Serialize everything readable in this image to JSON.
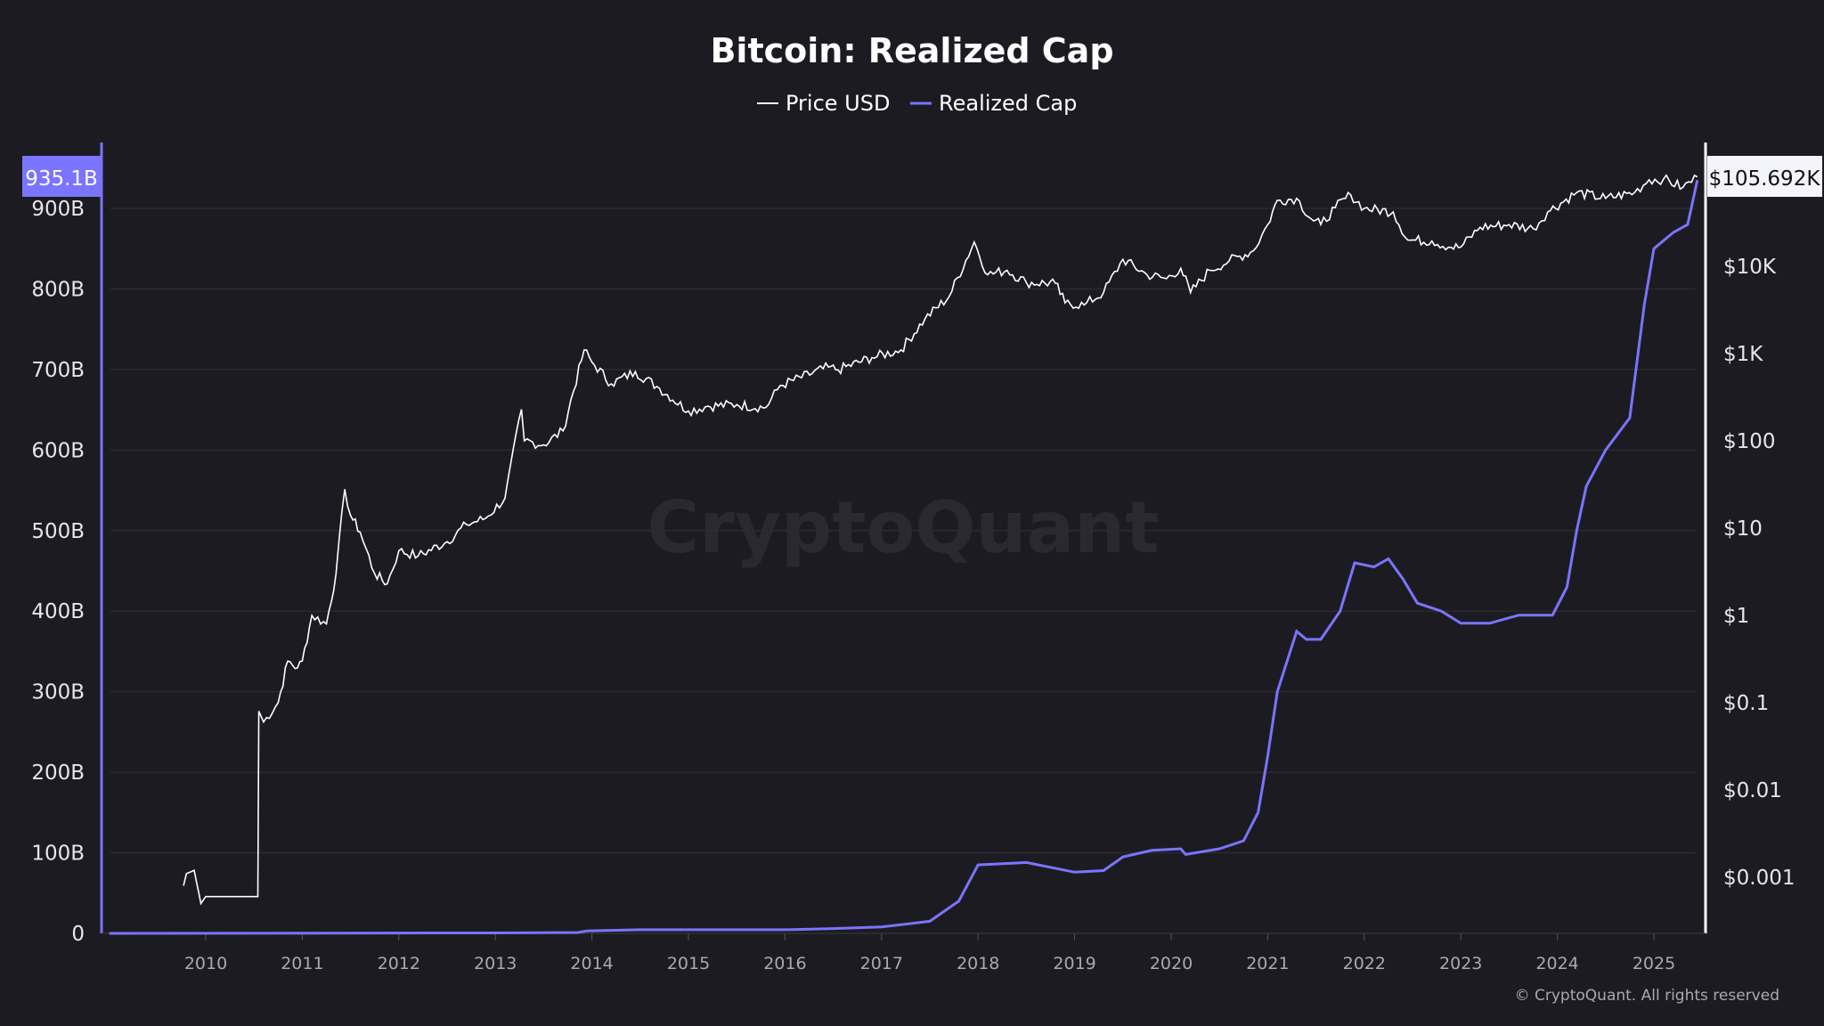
{
  "chart_data": {
    "type": "line",
    "title": "Bitcoin: Realized Cap",
    "legend": {
      "placement": "top-center"
    },
    "grid": true,
    "colors": {
      "background": "#1c1b21",
      "price": "#ffffff",
      "realized_cap": "#7b74ff"
    },
    "x_ticks": [
      "2010",
      "2011",
      "2012",
      "2013",
      "2014",
      "2015",
      "2016",
      "2017",
      "2018",
      "2019",
      "2020",
      "2021",
      "2022",
      "2023",
      "2024",
      "2025"
    ],
    "xlim": [
      2009.0,
      2025.58
    ],
    "y_left": {
      "ticks": [
        "0",
        "100B",
        "200B",
        "300B",
        "400B",
        "500B",
        "600B",
        "700B",
        "800B",
        "900B"
      ],
      "ylim_billions": [
        0,
        935.1
      ],
      "scale": "linear",
      "last_value_label": "935.1B"
    },
    "y_right": {
      "ticks": [
        "$10K",
        "$1K",
        "$100",
        "$10",
        "$1",
        "$0.1",
        "$0.01",
        "$0.001"
      ],
      "scale": "log",
      "last_value_label": "$105.692K"
    },
    "series": [
      {
        "name": "Price USD",
        "axis": "right",
        "points": [
          [
            2009.77,
            0.0008
          ],
          [
            2009.8,
            0.0011
          ],
          [
            2009.88,
            0.0012
          ],
          [
            2009.95,
            0.0005
          ],
          [
            2010.0,
            0.0006
          ],
          [
            2010.54,
            0.0006
          ],
          [
            2010.55,
            0.08
          ],
          [
            2010.6,
            0.06
          ],
          [
            2010.75,
            0.1
          ],
          [
            2010.85,
            0.3
          ],
          [
            2010.95,
            0.25
          ],
          [
            2011.0,
            0.3
          ],
          [
            2011.1,
            1.0
          ],
          [
            2011.25,
            0.8
          ],
          [
            2011.35,
            3
          ],
          [
            2011.44,
            28
          ],
          [
            2011.5,
            14
          ],
          [
            2011.6,
            9
          ],
          [
            2011.75,
            3
          ],
          [
            2011.88,
            2.3
          ],
          [
            2012.0,
            5.5
          ],
          [
            2012.2,
            4.8
          ],
          [
            2012.5,
            7
          ],
          [
            2012.7,
            11
          ],
          [
            2012.9,
            13
          ],
          [
            2013.1,
            22
          ],
          [
            2013.27,
            230
          ],
          [
            2013.3,
            100
          ],
          [
            2013.5,
            90
          ],
          [
            2013.7,
            130
          ],
          [
            2013.92,
            1100
          ],
          [
            2014.0,
            800
          ],
          [
            2014.2,
            450
          ],
          [
            2014.45,
            620
          ],
          [
            2014.7,
            400
          ],
          [
            2015.0,
            220
          ],
          [
            2015.2,
            250
          ],
          [
            2015.5,
            260
          ],
          [
            2015.8,
            240
          ],
          [
            2015.95,
            430
          ],
          [
            2016.45,
            700
          ],
          [
            2016.55,
            650
          ],
          [
            2016.9,
            900
          ],
          [
            2017.2,
            1100
          ],
          [
            2017.45,
            2500
          ],
          [
            2017.7,
            4500
          ],
          [
            2017.96,
            19000
          ],
          [
            2018.1,
            8000
          ],
          [
            2018.3,
            9000
          ],
          [
            2018.5,
            6500
          ],
          [
            2018.8,
            6400
          ],
          [
            2018.9,
            3800
          ],
          [
            2019.1,
            3600
          ],
          [
            2019.3,
            5000
          ],
          [
            2019.5,
            12000
          ],
          [
            2019.75,
            8000
          ],
          [
            2019.95,
            7200
          ],
          [
            2020.1,
            9500
          ],
          [
            2020.2,
            5000
          ],
          [
            2020.4,
            9000
          ],
          [
            2020.6,
            11500
          ],
          [
            2020.85,
            15000
          ],
          [
            2021.0,
            30000
          ],
          [
            2021.1,
            57000
          ],
          [
            2021.3,
            60000
          ],
          [
            2021.45,
            35000
          ],
          [
            2021.55,
            30000
          ],
          [
            2021.7,
            47000
          ],
          [
            2021.86,
            66000
          ],
          [
            2022.0,
            46000
          ],
          [
            2022.3,
            42000
          ],
          [
            2022.45,
            20000
          ],
          [
            2022.7,
            19500
          ],
          [
            2022.9,
            16500
          ],
          [
            2023.0,
            16600
          ],
          [
            2023.2,
            28000
          ],
          [
            2023.5,
            30000
          ],
          [
            2023.75,
            27000
          ],
          [
            2023.9,
            42000
          ],
          [
            2024.2,
            70000
          ],
          [
            2024.5,
            60000
          ],
          [
            2024.8,
            70000
          ],
          [
            2024.95,
            98000
          ],
          [
            2025.1,
            100000
          ],
          [
            2025.3,
            80000
          ],
          [
            2025.45,
            105692
          ]
        ]
      },
      {
        "name": "Realized Cap",
        "axis": "left",
        "points": [
          [
            2009.0,
            0
          ],
          [
            2013.0,
            0.5
          ],
          [
            2013.85,
            1
          ],
          [
            2013.95,
            3
          ],
          [
            2014.5,
            4.5
          ],
          [
            2016.0,
            4.5
          ],
          [
            2016.5,
            6
          ],
          [
            2017.0,
            8
          ],
          [
            2017.5,
            15
          ],
          [
            2017.8,
            40
          ],
          [
            2018.0,
            85
          ],
          [
            2018.5,
            88
          ],
          [
            2019.0,
            76
          ],
          [
            2019.3,
            78
          ],
          [
            2019.5,
            95
          ],
          [
            2019.8,
            103
          ],
          [
            2020.1,
            105
          ],
          [
            2020.15,
            98
          ],
          [
            2020.5,
            105
          ],
          [
            2020.75,
            115
          ],
          [
            2020.9,
            150
          ],
          [
            2021.0,
            220
          ],
          [
            2021.1,
            300
          ],
          [
            2021.3,
            375
          ],
          [
            2021.4,
            365
          ],
          [
            2021.55,
            365
          ],
          [
            2021.75,
            400
          ],
          [
            2021.9,
            460
          ],
          [
            2022.1,
            455
          ],
          [
            2022.25,
            465
          ],
          [
            2022.4,
            440
          ],
          [
            2022.55,
            410
          ],
          [
            2022.8,
            400
          ],
          [
            2023.0,
            385
          ],
          [
            2023.3,
            385
          ],
          [
            2023.6,
            395
          ],
          [
            2023.95,
            395
          ],
          [
            2024.1,
            430
          ],
          [
            2024.2,
            500
          ],
          [
            2024.3,
            555
          ],
          [
            2024.5,
            600
          ],
          [
            2024.75,
            640
          ],
          [
            2024.9,
            780
          ],
          [
            2025.0,
            850
          ],
          [
            2025.2,
            870
          ],
          [
            2025.35,
            880
          ],
          [
            2025.45,
            935.1
          ]
        ]
      }
    ]
  },
  "watermark": "CryptoQuant",
  "copyright": "© CryptoQuant. All rights reserved"
}
